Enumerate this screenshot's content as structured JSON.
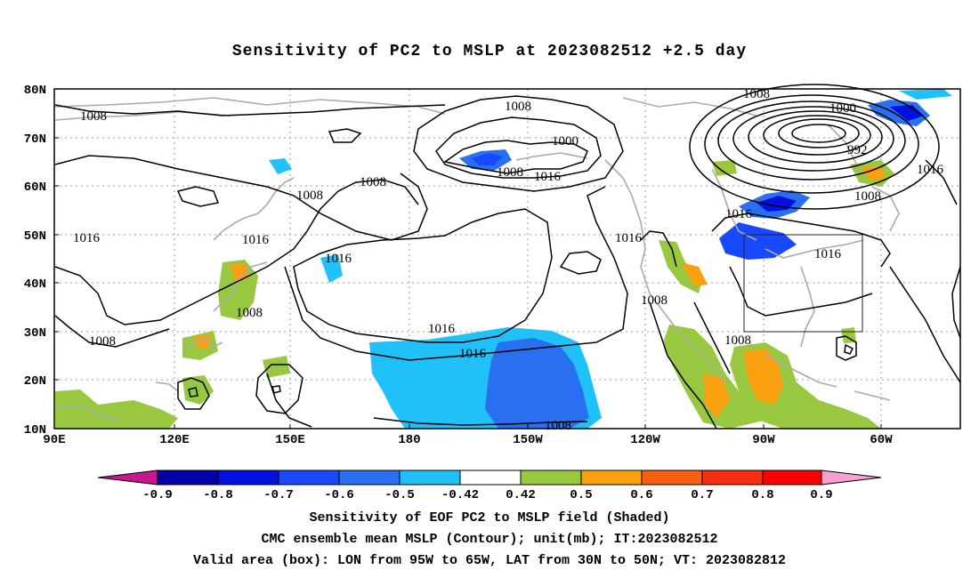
{
  "title": "Sensitivity of PC2 to MSLP at 2023082512 +2.5 day",
  "lat_ticks": [
    "80N",
    "70N",
    "60N",
    "50N",
    "40N",
    "30N",
    "20N",
    "10N"
  ],
  "lon_ticks": [
    "90E",
    "120E",
    "150E",
    "180",
    "150W",
    "120W",
    "90W",
    "60W"
  ],
  "contour_labels": [
    "1008",
    "1008",
    "1000",
    "1008",
    "1000",
    "992",
    "1016",
    "1008",
    "1008",
    "1008",
    "1016",
    "1016",
    "1016",
    "1016",
    "1016",
    "1016",
    "1008",
    "1008",
    "1008",
    "1016",
    "1016",
    "1008",
    "1008"
  ],
  "colorbar": {
    "ticks": [
      "-0.9",
      "-0.8",
      "-0.7",
      "-0.6",
      "-0.5",
      "-0.42",
      "0.42",
      "0.5",
      "0.6",
      "0.7",
      "0.8",
      "0.9"
    ],
    "colors": {
      "lt_min": "#c8168f",
      "m09": "#0000a8",
      "m08": "#0010e0",
      "m07": "#1848ff",
      "m06": "#2870f0",
      "m05": "#20c0f8",
      "neutral": "#ffffff",
      "p042": "#98c840",
      "p05": "#f8a010",
      "p06": "#f86010",
      "p07": "#f83010",
      "p08": "#ff0000",
      "gt_max": "#f8a0d0"
    }
  },
  "captions": {
    "line1": "Sensitivity of EOF PC2 to MSLP field (Shaded)",
    "line2": "CMC ensemble mean MSLP (Contour); unit(mb); IT:2023082512",
    "line3": "Valid area (box): LON from 95W to 65W, LAT from 30N to 50N; VT: 2023082812"
  }
}
